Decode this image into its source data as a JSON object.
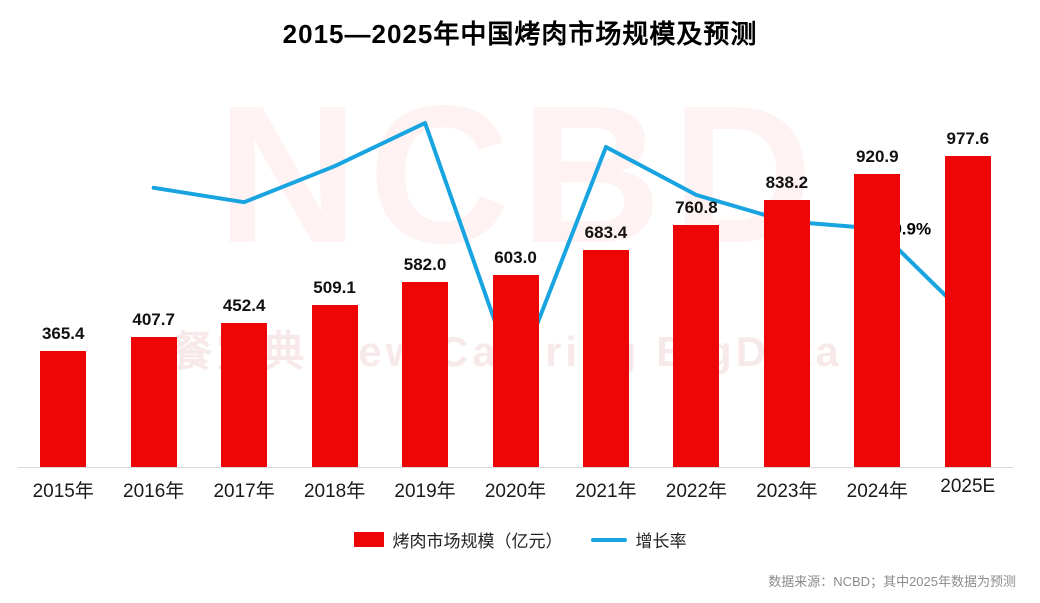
{
  "title": "2015—2025年中国烤肉市场规模及预测",
  "chart_data": {
    "type": "bar",
    "title": "2015—2025年中国烤肉市场规模及预测",
    "categories": [
      "2015年",
      "2016年",
      "2017年",
      "2018年",
      "2019年",
      "2020年",
      "2021年",
      "2022年",
      "2023年",
      "2024年",
      "2025E"
    ],
    "series": [
      {
        "name": "烤肉市场规模（亿元）",
        "type": "bar",
        "color": "#ee0505",
        "values": [
          365.4,
          407.7,
          452.4,
          509.1,
          582.0,
          603.0,
          683.4,
          760.8,
          838.2,
          920.9,
          977.6
        ]
      },
      {
        "name": "增长率",
        "type": "line",
        "color": "#18a4e0",
        "values": [
          null,
          11.6,
          11.0,
          12.5,
          14.3,
          3.6,
          13.3,
          11.3,
          10.2,
          9.9,
          6.2
        ]
      }
    ],
    "annotation": {
      "category": "2024年",
      "index": 9,
      "text": "9.9%"
    },
    "ylim": [
      0,
      1000
    ],
    "grid": false,
    "legend_position": "bottom"
  },
  "legend": {
    "items": [
      {
        "label": "烤肉市场规模（亿元）",
        "swatch": "bar",
        "color": "#ee0505"
      },
      {
        "label": "增长率",
        "swatch": "line",
        "color": "#18a4e0"
      }
    ]
  },
  "watermark": {
    "primary": "NCBD",
    "secondary": "餐宝典 New Catering BigData"
  },
  "source": "数据来源：NCBD；其中2025年数据为预测"
}
